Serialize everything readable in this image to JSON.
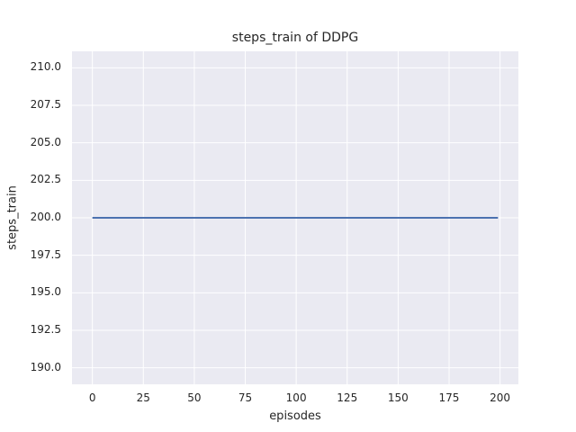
{
  "figure": {
    "background_color": "#ffffff"
  },
  "chart_data": {
    "type": "line",
    "title": "steps_train of DDPG",
    "xlabel": "episodes",
    "ylabel": "steps_train",
    "xlim": [
      -10,
      209
    ],
    "ylim": [
      188.9,
      211.1
    ],
    "x_ticks": [
      0,
      25,
      50,
      75,
      100,
      125,
      150,
      175,
      200
    ],
    "y_tick_labels": [
      "190.0",
      "192.5",
      "195.0",
      "197.5",
      "200.0",
      "202.5",
      "205.0",
      "207.5",
      "210.0"
    ],
    "grid": true,
    "legend": false,
    "style": {
      "plot_background": "#eaeaf2",
      "grid_color": "#ffffff",
      "text_color": "#262626",
      "line_color": "#4c72b0",
      "line_width": 2
    },
    "series": [
      {
        "name": "steps_train",
        "description": "constant value 200 for every episode from 0 to 199",
        "constant_value": 200,
        "x_range": [
          0,
          199
        ],
        "points": [
          [
            0,
            200
          ],
          [
            199,
            200
          ]
        ]
      }
    ]
  }
}
